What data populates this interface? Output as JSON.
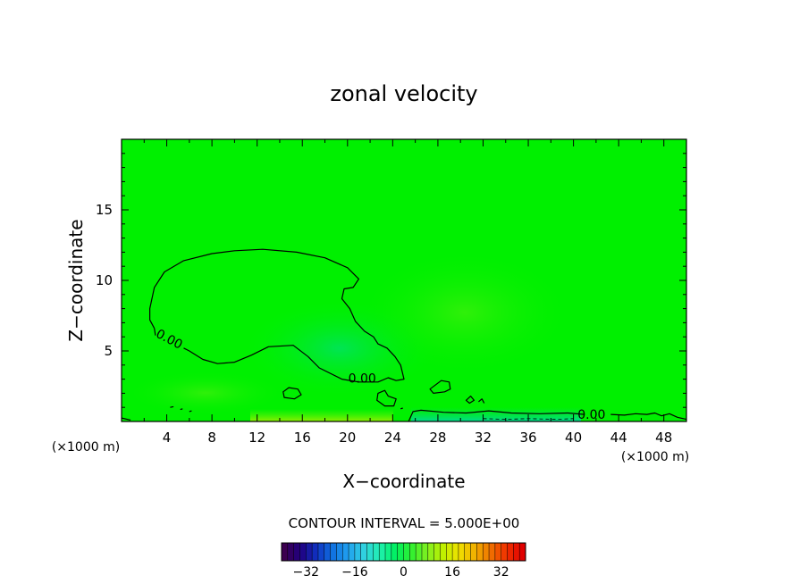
{
  "chart_data": {
    "type": "heatmap",
    "title": "zonal velocity",
    "xlabel": "X−coordinate",
    "ylabel": "Z−coordinate",
    "x_unit_left": "(×1000 m)",
    "x_unit_right": "(×1000 m)",
    "xlim": [
      0,
      50
    ],
    "ylim": [
      0,
      20
    ],
    "x_ticks": [
      4,
      8,
      12,
      16,
      20,
      24,
      28,
      32,
      36,
      40,
      44,
      48
    ],
    "x_tick_labels": [
      "4",
      "8",
      "12",
      "16",
      "20",
      "24",
      "28",
      "32",
      "36",
      "40",
      "44",
      "48"
    ],
    "y_ticks": [
      5,
      10,
      15
    ],
    "y_tick_labels": [
      "5",
      "10",
      "15"
    ],
    "grid": false,
    "field_note_color": "#00f000",
    "contour_level": 0,
    "contour_labels": [
      {
        "text": "0.00",
        "x": 4.2,
        "y": 5.8
      },
      {
        "text": "0.00",
        "x": 21.3,
        "y": 3.0
      },
      {
        "text": "0.00",
        "x": 41.6,
        "y": 0.45
      }
    ],
    "contours": [
      {
        "points": [
          [
            2.9,
            6.6
          ],
          [
            2.5,
            7.2
          ],
          [
            2.5,
            8.0
          ],
          [
            2.9,
            9.5
          ],
          [
            3.8,
            10.6
          ],
          [
            5.5,
            11.4
          ],
          [
            8,
            11.9
          ],
          [
            10,
            12.1
          ],
          [
            12.5,
            12.2
          ],
          [
            15.5,
            12.0
          ],
          [
            18,
            11.6
          ],
          [
            20,
            10.9
          ],
          [
            21,
            10.1
          ],
          [
            20.5,
            9.5
          ],
          [
            19.7,
            9.4
          ],
          [
            19.5,
            8.7
          ],
          [
            20.2,
            8.0
          ],
          [
            20.7,
            7.1
          ],
          [
            21.5,
            6.4
          ],
          [
            22.3,
            6.0
          ],
          [
            22.7,
            5.5
          ],
          [
            23.5,
            5.2
          ],
          [
            24.2,
            4.6
          ],
          [
            24.7,
            4.0
          ],
          [
            25.0,
            3.0
          ],
          [
            24.3,
            2.9
          ],
          [
            23.6,
            3.1
          ],
          [
            22.7,
            2.8
          ],
          [
            21.0,
            2.8
          ],
          [
            19.5,
            3.0
          ],
          [
            17.5,
            3.8
          ],
          [
            16.5,
            4.6
          ],
          [
            15.2,
            5.4
          ],
          [
            13,
            5.3
          ],
          [
            11.5,
            4.7
          ],
          [
            10,
            4.2
          ],
          [
            8.5,
            4.1
          ],
          [
            7.2,
            4.4
          ],
          [
            6,
            5.0
          ],
          [
            5.5,
            5.2
          ]
        ],
        "closed": false
      },
      {
        "points": [
          [
            3.0,
            6.1
          ],
          [
            2.9,
            6.6
          ]
        ],
        "closed": false
      },
      {
        "points": [
          [
            14.3,
            2.1
          ],
          [
            14.8,
            2.4
          ],
          [
            15.6,
            2.3
          ],
          [
            15.9,
            1.9
          ],
          [
            15.3,
            1.6
          ],
          [
            14.4,
            1.7
          ]
        ],
        "closed": true
      },
      {
        "points": [
          [
            22.7,
            2.0
          ],
          [
            23.3,
            2.2
          ],
          [
            23.6,
            1.8
          ],
          [
            24.3,
            1.6
          ],
          [
            24.1,
            1.1
          ],
          [
            23.3,
            1.1
          ],
          [
            22.6,
            1.5
          ]
        ],
        "closed": true
      },
      {
        "points": [
          [
            27.3,
            2.3
          ],
          [
            28.3,
            2.9
          ],
          [
            29.0,
            2.8
          ],
          [
            29.1,
            2.3
          ],
          [
            28.6,
            2.1
          ],
          [
            27.6,
            2.0
          ]
        ],
        "closed": true
      },
      {
        "points": [
          [
            30.5,
            1.5
          ],
          [
            30.9,
            1.8
          ],
          [
            31.2,
            1.5
          ],
          [
            30.8,
            1.3
          ]
        ],
        "closed": true
      },
      {
        "points": [
          [
            31.6,
            1.4
          ],
          [
            31.9,
            1.6
          ],
          [
            32.1,
            1.3
          ]
        ],
        "closed": false
      },
      {
        "points": [
          [
            25.4,
            0.0
          ],
          [
            25.8,
            0.7
          ],
          [
            26.5,
            0.8
          ],
          [
            28.5,
            0.65
          ],
          [
            30.5,
            0.6
          ],
          [
            32.5,
            0.75
          ],
          [
            34.5,
            0.6
          ],
          [
            37,
            0.55
          ],
          [
            39.5,
            0.6
          ],
          [
            41,
            0.5
          ]
        ],
        "closed": false
      },
      {
        "points": [
          [
            43.3,
            0.5
          ],
          [
            44.5,
            0.45
          ],
          [
            45.5,
            0.55
          ],
          [
            46.5,
            0.5
          ],
          [
            47.2,
            0.6
          ],
          [
            47.8,
            0.4
          ],
          [
            48.5,
            0.55
          ],
          [
            49.2,
            0.3
          ],
          [
            50,
            0.15
          ]
        ],
        "closed": false
      },
      {
        "points": [
          [
            0,
            0.25
          ],
          [
            0.8,
            0.1
          ]
        ],
        "closed": false
      },
      {
        "points": [
          [
            4.3,
            1.0
          ],
          [
            4.6,
            1.05
          ]
        ],
        "closed": false
      },
      {
        "points": [
          [
            5.2,
            0.85
          ],
          [
            5.4,
            0.9
          ]
        ],
        "closed": false
      },
      {
        "points": [
          [
            6.0,
            0.7
          ],
          [
            6.2,
            0.75
          ]
        ],
        "closed": false
      },
      {
        "points": [
          [
            24.7,
            0.9
          ],
          [
            24.9,
            0.95
          ]
        ],
        "closed": false
      }
    ],
    "dashed_contours": [
      {
        "points": [
          [
            32.0,
            0.2
          ],
          [
            34.0,
            0.15
          ],
          [
            36.0,
            0.2
          ],
          [
            38.5,
            0.15
          ],
          [
            40.0,
            0.2
          ]
        ]
      }
    ],
    "colorbar": {
      "min": -40,
      "max": 40,
      "tick_values": [
        -32,
        -16,
        0,
        16,
        32
      ],
      "tick_labels": [
        "−32",
        "−16",
        "0",
        "16",
        "32"
      ],
      "color_stops": [
        "#3c0050",
        "#200080",
        "#1030c0",
        "#1070e0",
        "#20a0f0",
        "#30d0e0",
        "#20f0b0",
        "#00f060",
        "#30f030",
        "#80f020",
        "#c0f000",
        "#f0e000",
        "#f0b000",
        "#f07000",
        "#f03000",
        "#e00000"
      ],
      "bands": 40
    },
    "contour_interval_text": "CONTOUR INTERVAL = 5.000E+00"
  }
}
